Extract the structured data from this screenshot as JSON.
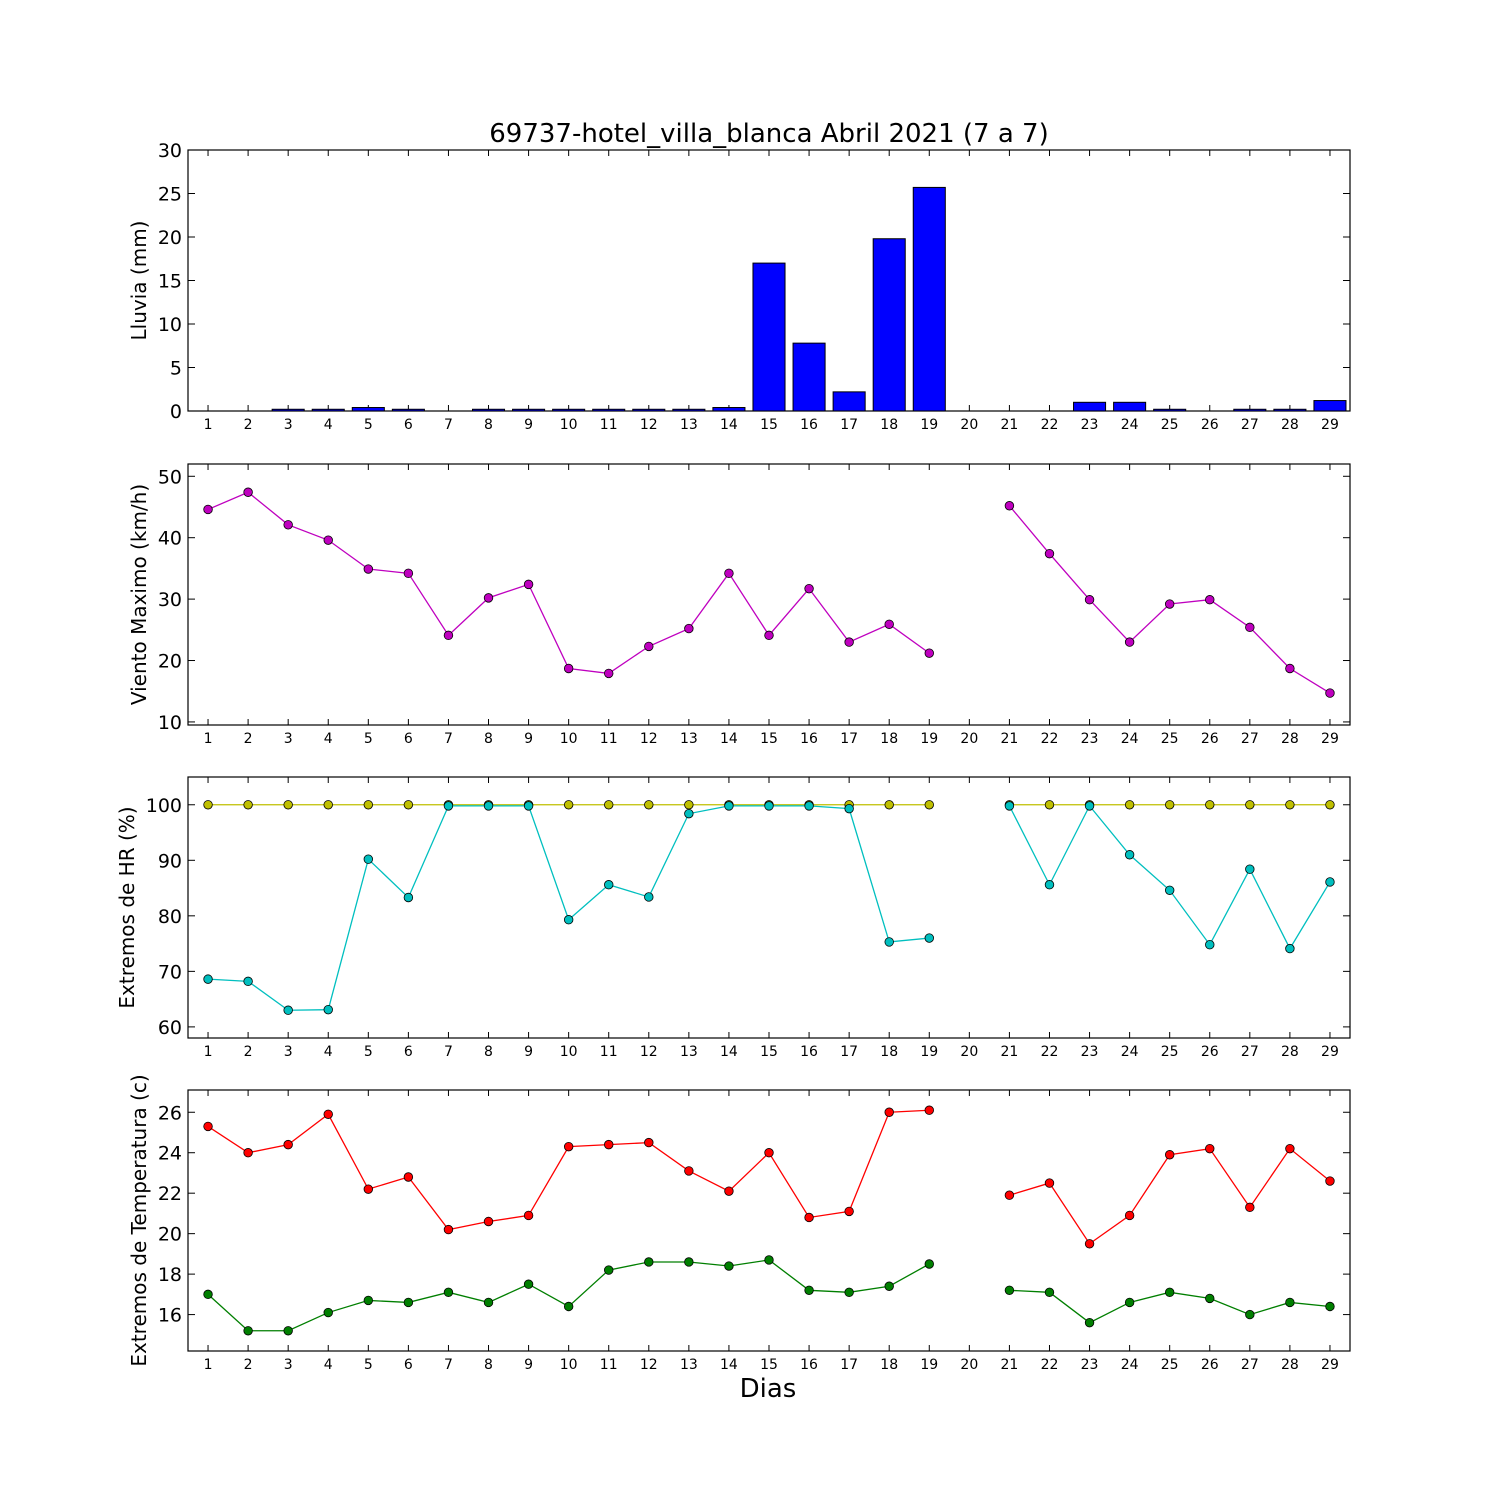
{
  "chart_data": {
    "title": "69737-hotel_villa_blanca Abril 2021  (7 a 7)",
    "xlabel": "Dias",
    "days": [
      1,
      2,
      3,
      4,
      5,
      6,
      7,
      8,
      9,
      10,
      11,
      12,
      13,
      14,
      15,
      16,
      17,
      18,
      19,
      20,
      21,
      22,
      23,
      24,
      25,
      26,
      27,
      28,
      29
    ],
    "panels": [
      {
        "type": "bar",
        "ylabel": "Lluvia (mm)",
        "ylim": [
          0,
          30
        ],
        "yticks": [
          0,
          5,
          10,
          15,
          20,
          25,
          30
        ],
        "series": [
          {
            "color": "#0000ff",
            "values": [
              0,
              0,
              0.2,
              0.2,
              0.4,
              0.2,
              0,
              0.2,
              0.2,
              0.2,
              0.2,
              0.2,
              0.2,
              0.4,
              17.0,
              7.8,
              2.2,
              19.8,
              25.7,
              0,
              0,
              0,
              1.0,
              1.0,
              0.2,
              0,
              0.2,
              0.2,
              1.2
            ]
          }
        ]
      },
      {
        "type": "line",
        "ylabel": "Viento Maximo (km/h)",
        "ylim": [
          9.5,
          52
        ],
        "yticks": [
          10,
          20,
          30,
          40,
          50
        ],
        "series": [
          {
            "color": "#bf00bf",
            "values": [
              44.6,
              47.4,
              42.1,
              39.6,
              34.9,
              34.2,
              24.1,
              30.2,
              32.4,
              18.7,
              17.9,
              22.3,
              25.2,
              34.2,
              24.1,
              31.7,
              23.0,
              25.9,
              21.2,
              null,
              45.2,
              37.4,
              29.9,
              23.0,
              29.2,
              29.9,
              25.4,
              18.7,
              14.7
            ]
          }
        ]
      },
      {
        "type": "line",
        "ylabel": "Extremos de HR (%)",
        "ylim": [
          58,
          105
        ],
        "yticks": [
          60,
          70,
          80,
          90,
          100
        ],
        "series": [
          {
            "color": "#bfbf00",
            "values": [
              100,
              100,
              100,
              100,
              100,
              100,
              100,
              100,
              100,
              100,
              100,
              100,
              100,
              100,
              100,
              100,
              100,
              100,
              100,
              null,
              100,
              100,
              100,
              100,
              100,
              100,
              100,
              100,
              100
            ]
          },
          {
            "color": "#00bfbf",
            "values": [
              68.6,
              68.2,
              63,
              63.1,
              90.2,
              83.3,
              99.8,
              99.8,
              99.8,
              79.3,
              85.6,
              83.4,
              98.4,
              99.8,
              99.8,
              99.8,
              99.3,
              75.3,
              76,
              null,
              99.8,
              85.6,
              99.8,
              91,
              84.6,
              74.8,
              88.4,
              74.1,
              86.1
            ]
          }
        ]
      },
      {
        "type": "line",
        "ylabel": "Extremos de Temperatura (c)",
        "ylim": [
          14.2,
          27.1
        ],
        "yticks": [
          16,
          18,
          20,
          22,
          24,
          26
        ],
        "series": [
          {
            "color": "#ff0000",
            "values": [
              25.3,
              24.0,
              24.4,
              25.9,
              22.2,
              22.8,
              20.2,
              20.6,
              20.9,
              24.3,
              24.4,
              24.5,
              23.1,
              22.1,
              24.0,
              20.8,
              21.1,
              26.0,
              26.1,
              null,
              21.9,
              22.5,
              19.5,
              20.9,
              23.9,
              24.2,
              21.3,
              24.2,
              22.6
            ]
          },
          {
            "color": "#007f00",
            "values": [
              17.0,
              15.2,
              15.2,
              16.1,
              16.7,
              16.6,
              17.1,
              16.6,
              17.5,
              16.4,
              18.2,
              18.6,
              18.6,
              18.4,
              18.7,
              17.2,
              17.1,
              17.4,
              18.5,
              null,
              17.2,
              17.1,
              15.6,
              16.6,
              17.1,
              16.8,
              16.0,
              16.6,
              16.4
            ]
          }
        ]
      }
    ]
  }
}
